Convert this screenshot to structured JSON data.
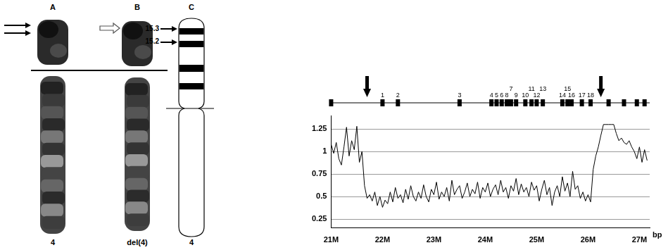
{
  "panels": [
    {
      "letter": "A",
      "label": "4"
    },
    {
      "letter": "B",
      "label": "del(4)"
    },
    {
      "letter": "C",
      "label": "4",
      "bands": [
        "15.3",
        "15.2"
      ]
    }
  ],
  "chart_data": {
    "type": "line",
    "x_label": "bp",
    "color": "#000000",
    "x": [
      21000000,
      21050000,
      21100000,
      21150000,
      21200000,
      21250000,
      21300000,
      21350000,
      21400000,
      21450000,
      21500000,
      21550000,
      21600000,
      21650000,
      21700000,
      21750000,
      21800000,
      21850000,
      21900000,
      21950000,
      22000000,
      22050000,
      22100000,
      22150000,
      22200000,
      22250000,
      22300000,
      22350000,
      22400000,
      22450000,
      22500000,
      22550000,
      22600000,
      22650000,
      22700000,
      22750000,
      22800000,
      22850000,
      22900000,
      22950000,
      23000000,
      23050000,
      23100000,
      23150000,
      23200000,
      23250000,
      23300000,
      23350000,
      23400000,
      23450000,
      23500000,
      23550000,
      23600000,
      23650000,
      23700000,
      23750000,
      23800000,
      23850000,
      23900000,
      23950000,
      24000000,
      24050000,
      24100000,
      24150000,
      24200000,
      24250000,
      24300000,
      24350000,
      24400000,
      24450000,
      24500000,
      24550000,
      24600000,
      24650000,
      24700000,
      24750000,
      24800000,
      24850000,
      24900000,
      24950000,
      25000000,
      25050000,
      25100000,
      25150000,
      25200000,
      25250000,
      25300000,
      25350000,
      25400000,
      25450000,
      25500000,
      25550000,
      25600000,
      25650000,
      25700000,
      25750000,
      25800000,
      25850000,
      25900000,
      25950000,
      26000000,
      26050000,
      26100000,
      26150000,
      26200000,
      26250000,
      26300000,
      26350000,
      26400000,
      26450000,
      26500000,
      26550000,
      26600000,
      26650000,
      26700000,
      26750000,
      26800000,
      26850000,
      26900000,
      26950000,
      27000000,
      27050000,
      27100000,
      27150000
    ],
    "values": [
      1.08,
      0.98,
      1.1,
      0.92,
      0.85,
      1.05,
      1.27,
      0.95,
      1.12,
      1.02,
      1.28,
      0.88,
      1.0,
      0.62,
      0.48,
      0.52,
      0.45,
      0.55,
      0.4,
      0.5,
      0.38,
      0.46,
      0.42,
      0.55,
      0.44,
      0.6,
      0.48,
      0.52,
      0.43,
      0.58,
      0.47,
      0.62,
      0.5,
      0.45,
      0.55,
      0.48,
      0.63,
      0.5,
      0.44,
      0.58,
      0.52,
      0.66,
      0.47,
      0.55,
      0.5,
      0.6,
      0.45,
      0.68,
      0.52,
      0.58,
      0.62,
      0.48,
      0.55,
      0.65,
      0.5,
      0.58,
      0.53,
      0.66,
      0.48,
      0.6,
      0.55,
      0.65,
      0.5,
      0.58,
      0.63,
      0.52,
      0.68,
      0.55,
      0.6,
      0.48,
      0.62,
      0.56,
      0.7,
      0.52,
      0.64,
      0.55,
      0.6,
      0.5,
      0.66,
      0.57,
      0.62,
      0.45,
      0.58,
      0.68,
      0.52,
      0.6,
      0.4,
      0.55,
      0.62,
      0.5,
      0.72,
      0.56,
      0.65,
      0.5,
      0.78,
      0.58,
      0.62,
      0.48,
      0.55,
      0.45,
      0.52,
      0.44,
      0.8,
      0.95,
      1.05,
      1.18,
      1.3,
      1.3,
      1.3,
      1.3,
      1.3,
      1.2,
      1.12,
      1.15,
      1.1,
      1.08,
      1.12,
      1.05,
      1.0,
      0.92,
      1.05,
      0.88,
      1.02,
      0.9
    ],
    "xlim": [
      21000000,
      27200000
    ],
    "xticks": [
      {
        "value": 21000000,
        "label": "21M"
      },
      {
        "value": 22000000,
        "label": "22M"
      },
      {
        "value": 23000000,
        "label": "23M"
      },
      {
        "value": 24000000,
        "label": "24M"
      },
      {
        "value": 25000000,
        "label": "25M"
      },
      {
        "value": 26000000,
        "label": "26M"
      },
      {
        "value": 27000000,
        "label": "27M"
      }
    ],
    "ylim": [
      0.15,
      1.4
    ],
    "yticks": [
      0.25,
      0.5,
      0.75,
      1,
      1.25
    ],
    "grid": true,
    "genes": [
      {
        "x": 21000000,
        "label": null
      },
      {
        "x": 22000000,
        "label": "1"
      },
      {
        "x": 22300000,
        "label": "2"
      },
      {
        "x": 23500000,
        "label": "3"
      },
      {
        "x": 24120000,
        "label": "4"
      },
      {
        "x": 24220000,
        "label": "5"
      },
      {
        "x": 24320000,
        "label": "6"
      },
      {
        "x": 24500000,
        "label": "7"
      },
      {
        "x": 24420000,
        "label": "8"
      },
      {
        "x": 24600000,
        "label": "9"
      },
      {
        "x": 24780000,
        "label": "10"
      },
      {
        "x": 24900000,
        "label": "11"
      },
      {
        "x": 25000000,
        "label": "12"
      },
      {
        "x": 25120000,
        "label": "13"
      },
      {
        "x": 25500000,
        "label": "14"
      },
      {
        "x": 25600000,
        "label": "15"
      },
      {
        "x": 25680000,
        "label": "16"
      },
      {
        "x": 25880000,
        "label": "17"
      },
      {
        "x": 26050000,
        "label": "18"
      },
      {
        "x": 26400000,
        "label": null
      },
      {
        "x": 26700000,
        "label": null
      },
      {
        "x": 26950000,
        "label": null
      },
      {
        "x": 27100000,
        "label": null
      }
    ],
    "arrows": [
      21700000,
      26250000
    ]
  }
}
